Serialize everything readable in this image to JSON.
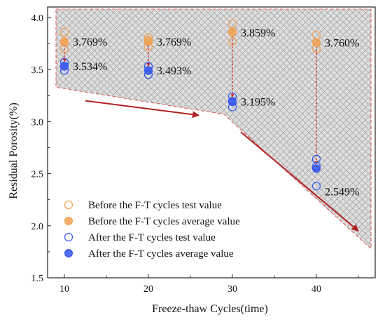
{
  "chart_data": {
    "type": "scatter",
    "xlabel": "Freeze-thaw Cycles(time)",
    "ylabel": "Residual Porosity(%)",
    "xlim": [
      8,
      47
    ],
    "ylim": [
      1.5,
      4.1
    ],
    "x_ticks": [
      10,
      20,
      30,
      40
    ],
    "y_ticks": [
      1.5,
      2.0,
      2.5,
      3.0,
      3.5,
      4.0
    ],
    "x_tick_labels": [
      "10",
      "20",
      "30",
      "40"
    ],
    "y_tick_labels": [
      "1.5",
      "2.0",
      "2.5",
      "3.0",
      "3.5",
      "4.0"
    ],
    "grid": false,
    "legend_position": "bottom-left",
    "series": [
      {
        "name": "Before the F-T cycles test value",
        "marker": "open-circle",
        "color": "#f0a050",
        "points": [
          {
            "x": 10,
            "y": 3.86
          },
          {
            "x": 10,
            "y": 3.76
          },
          {
            "x": 10,
            "y": 3.7
          },
          {
            "x": 20,
            "y": 3.81
          },
          {
            "x": 20,
            "y": 3.78
          },
          {
            "x": 20,
            "y": 3.72
          },
          {
            "x": 30,
            "y": 3.94
          },
          {
            "x": 30,
            "y": 3.86
          },
          {
            "x": 30,
            "y": 3.77
          },
          {
            "x": 40,
            "y": 3.83
          },
          {
            "x": 40,
            "y": 3.76
          },
          {
            "x": 40,
            "y": 3.7
          }
        ]
      },
      {
        "name": "Before the F-T cycles average value",
        "marker": "filled-circle",
        "color": "#f0a050",
        "points": [
          {
            "x": 10,
            "y": 3.769
          },
          {
            "x": 20,
            "y": 3.769
          },
          {
            "x": 30,
            "y": 3.859
          },
          {
            "x": 40,
            "y": 3.76
          }
        ]
      },
      {
        "name": "After the F-T cycles test value",
        "marker": "open-circle",
        "color": "#3355ee",
        "points": [
          {
            "x": 10,
            "y": 3.57
          },
          {
            "x": 10,
            "y": 3.53
          },
          {
            "x": 10,
            "y": 3.49
          },
          {
            "x": 20,
            "y": 3.53
          },
          {
            "x": 20,
            "y": 3.49
          },
          {
            "x": 20,
            "y": 3.45
          },
          {
            "x": 30,
            "y": 3.24
          },
          {
            "x": 30,
            "y": 3.19
          },
          {
            "x": 30,
            "y": 3.14
          },
          {
            "x": 40,
            "y": 2.64
          },
          {
            "x": 40,
            "y": 2.57
          },
          {
            "x": 40,
            "y": 2.38
          }
        ]
      },
      {
        "name": "After the F-T cycles average value",
        "marker": "filled-circle",
        "color": "#3355ee",
        "points": [
          {
            "x": 10,
            "y": 3.534
          },
          {
            "x": 20,
            "y": 3.493
          },
          {
            "x": 30,
            "y": 3.195
          },
          {
            "x": 40,
            "y": 2.549
          }
        ]
      }
    ],
    "annotations": [
      {
        "text": "3.769%",
        "x": 10,
        "y": 3.769
      },
      {
        "text": "3.534%",
        "x": 10,
        "y": 3.534
      },
      {
        "text": "3.769%",
        "x": 20,
        "y": 3.769
      },
      {
        "text": "3.493%",
        "x": 20,
        "y": 3.493
      },
      {
        "text": "3.859%",
        "x": 30,
        "y": 3.859
      },
      {
        "text": "3.195%",
        "x": 30,
        "y": 3.195
      },
      {
        "text": "3.760%",
        "x": 40,
        "y": 3.76
      },
      {
        "text": "2.549%",
        "x": 40,
        "y": 2.549
      }
    ],
    "shaded_region": {
      "fill": "hatched-gray",
      "border": "dashed-red",
      "polygon": [
        {
          "x": 9,
          "y": 4.08
        },
        {
          "x": 46.5,
          "y": 4.08
        },
        {
          "x": 46.5,
          "y": 1.78
        },
        {
          "x": 29,
          "y": 3.07
        },
        {
          "x": 9,
          "y": 3.33
        }
      ]
    },
    "trend_arrows": [
      {
        "from": {
          "x": 12.5,
          "y": 3.2
        },
        "to": {
          "x": 26,
          "y": 3.06
        }
      },
      {
        "from": {
          "x": 31,
          "y": 2.9
        },
        "to": {
          "x": 45,
          "y": 1.95
        }
      }
    ],
    "change_arrows_color": "#cc2222",
    "trend_arrow_color": "#b22222"
  }
}
